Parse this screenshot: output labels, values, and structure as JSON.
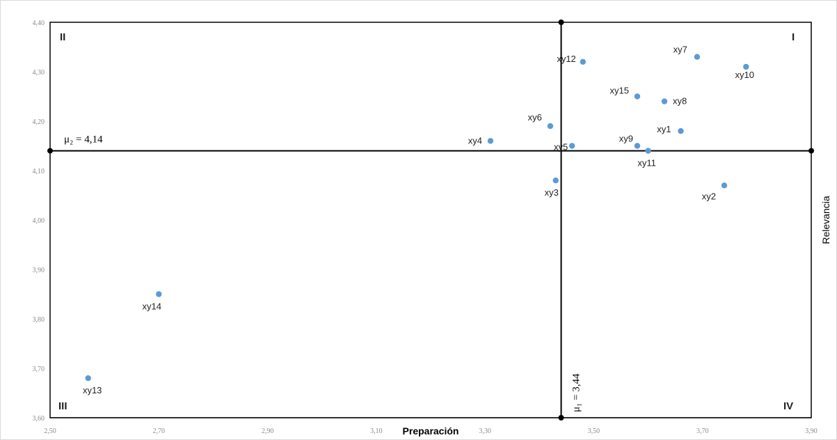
{
  "chart_data": {
    "type": "scatter",
    "xlabel": "Preparación",
    "ylabel": "Relevancia",
    "xlim": [
      2.5,
      3.9
    ],
    "ylim": [
      3.6,
      4.4
    ],
    "x_ticks": [
      "2,50",
      "2,70",
      "2,90",
      "3,10",
      "3,30",
      "3,50",
      "3,70",
      "3,90"
    ],
    "y_ticks": [
      "3,60",
      "3,70",
      "3,80",
      "3,90",
      "4,00",
      "4,10",
      "4,20",
      "4,30",
      "4,40"
    ],
    "grid": false,
    "marker_color": "#5b9bd5",
    "points": [
      {
        "label": "xy1",
        "x": 3.66,
        "y": 4.18
      },
      {
        "label": "xy2",
        "x": 3.74,
        "y": 4.07
      },
      {
        "label": "xy3",
        "x": 3.43,
        "y": 4.08
      },
      {
        "label": "xy4",
        "x": 3.31,
        "y": 4.16
      },
      {
        "label": "xy5",
        "x": 3.46,
        "y": 4.15
      },
      {
        "label": "xy6",
        "x": 3.42,
        "y": 4.19
      },
      {
        "label": "xy7",
        "x": 3.69,
        "y": 4.33
      },
      {
        "label": "xy8",
        "x": 3.63,
        "y": 4.24
      },
      {
        "label": "xy9",
        "x": 3.58,
        "y": 4.15
      },
      {
        "label": "xy10",
        "x": 3.78,
        "y": 4.31
      },
      {
        "label": "xy11",
        "x": 3.6,
        "y": 4.14
      },
      {
        "label": "xy12",
        "x": 3.48,
        "y": 4.32
      },
      {
        "label": "xy13",
        "x": 2.57,
        "y": 3.68
      },
      {
        "label": "xy14",
        "x": 2.7,
        "y": 3.85
      },
      {
        "label": "xy15",
        "x": 3.58,
        "y": 4.25
      }
    ],
    "mean_lines": {
      "vertical": {
        "value": 3.44,
        "label": "μ₁ = 3,44"
      },
      "horizontal": {
        "value": 4.14,
        "label": "μ₂ = 4,14"
      }
    },
    "quadrants": {
      "I": "I",
      "II": "II",
      "III": "III",
      "IV": "IV"
    }
  }
}
